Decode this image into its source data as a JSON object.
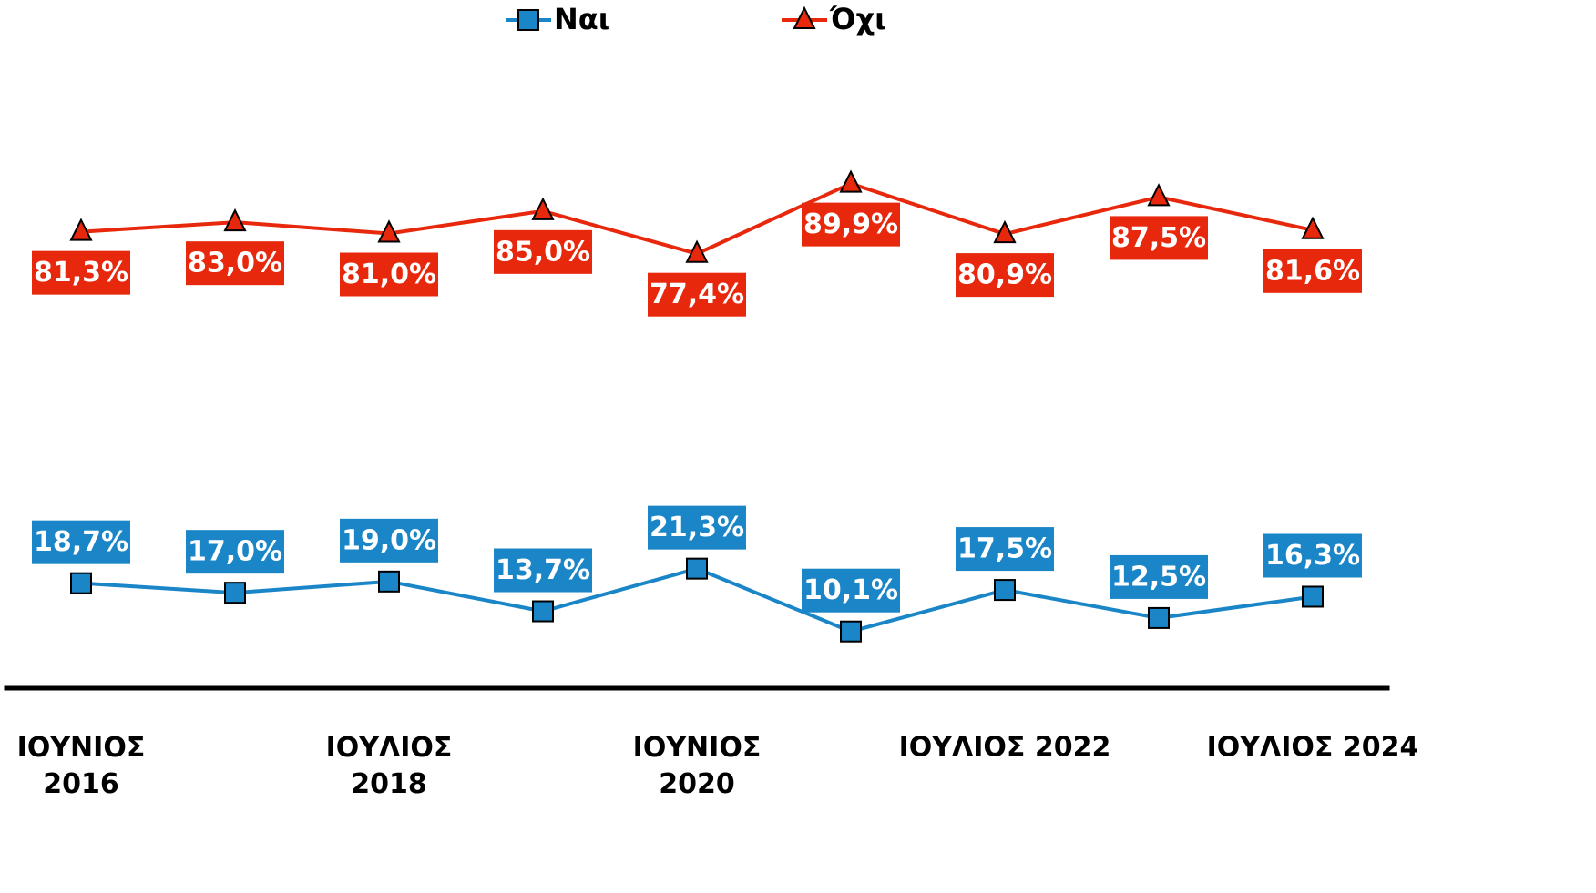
{
  "chart_data": {
    "type": "line",
    "categories": [
      "ΙΟΥΝΙΟΣ\n2016",
      null,
      "ΙΟΥΛΙΟΣ\n2018",
      null,
      "ΙΟΥΝΙΟΣ\n2020",
      null,
      "ΙΟΥΛΙΟΣ 2022",
      null,
      "ΙΟΥΛΙΟΣ 2024"
    ],
    "series": [
      {
        "name": "Ναι",
        "color": "#1a86c8",
        "marker": "square",
        "values": [
          18.7,
          17.0,
          19.0,
          13.7,
          21.3,
          10.1,
          17.5,
          12.5,
          16.3
        ],
        "value_labels": [
          "18,7%",
          "17,0%",
          "19,0%",
          "13,7%",
          "21,3%",
          "10,1%",
          "17,5%",
          "12,5%",
          "16,3%"
        ]
      },
      {
        "name": "Όχι",
        "color": "#e8280c",
        "marker": "triangle",
        "values": [
          81.3,
          83.0,
          81.0,
          85.0,
          77.4,
          89.9,
          80.9,
          87.5,
          81.6
        ],
        "value_labels": [
          "81,3%",
          "83,0%",
          "81,0%",
          "85,0%",
          "77,4%",
          "89,9%",
          "80,9%",
          "87,5%",
          "81,6%"
        ]
      }
    ],
    "ylim": [
      0,
      120
    ],
    "legend": "top"
  }
}
